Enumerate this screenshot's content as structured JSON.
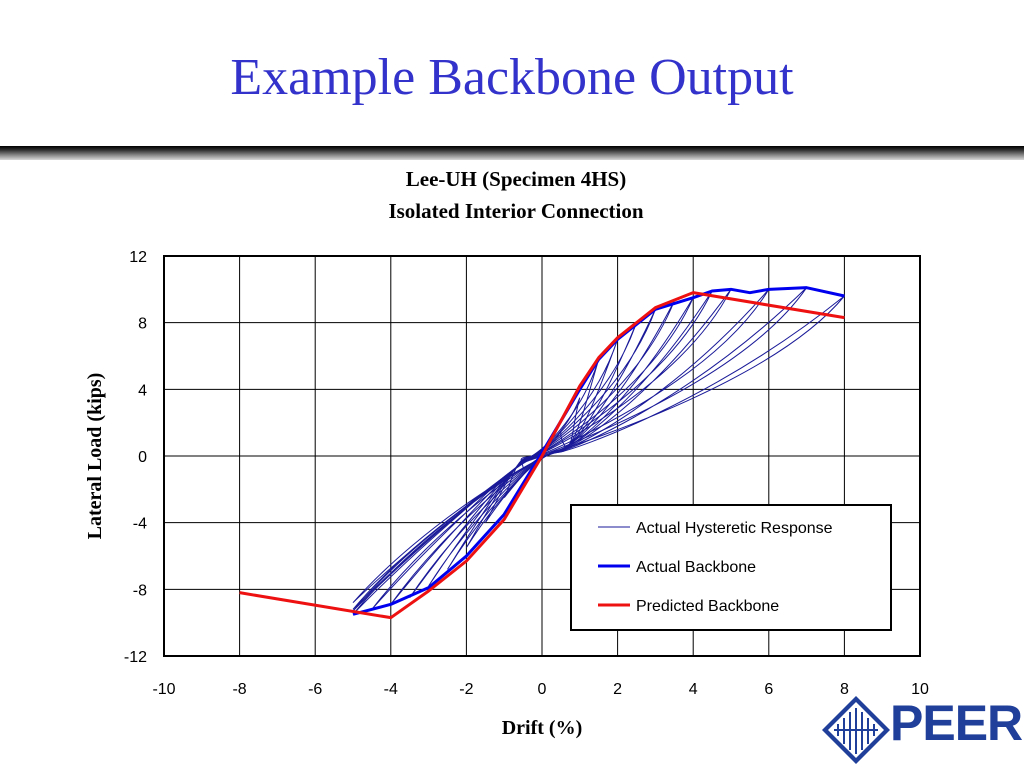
{
  "slide": {
    "title": "Example Backbone Output"
  },
  "logo": {
    "text": "PEER"
  },
  "chart_data": {
    "type": "line",
    "title": "Lee-UH (Specimen 4HS)",
    "subtitle": "Isolated Interior Connection",
    "xlabel": "Drift (%)",
    "ylabel": "Lateral Load (kips)",
    "xlim": [
      -10,
      10
    ],
    "ylim": [
      -12,
      12
    ],
    "xticks": [
      -10,
      -8,
      -6,
      -4,
      -2,
      0,
      2,
      4,
      6,
      8,
      10
    ],
    "yticks": [
      -12,
      -8,
      -4,
      0,
      4,
      8,
      12
    ],
    "grid": true,
    "legend": {
      "placement": "bottom-right",
      "entries": [
        "Actual Hysteretic Response",
        "Actual Backbone",
        "Predicted Backbone"
      ]
    },
    "colors": {
      "hysteretic": "#1a1a99",
      "actual_backbone": "#0000ee",
      "predicted_backbone": "#ee1111"
    },
    "series": [
      {
        "name": "Actual Hysteretic Response",
        "loops": [
          {
            "peak": [
              0.5,
              1.5
            ],
            "valley": [
              -0.5,
              -0.8
            ],
            "residual_pos": 0.35,
            "residual_neg": -0.3
          },
          {
            "peak": [
              1.0,
              3.5
            ],
            "valley": [
              -1.0,
              -2.5
            ],
            "residual_pos": 0.4,
            "residual_neg": -0.5
          },
          {
            "peak": [
              1.5,
              5.8
            ],
            "valley": [
              -1.5,
              -4.0
            ],
            "residual_pos": 0.45,
            "residual_neg": -0.6
          },
          {
            "peak": [
              2.0,
              7.0
            ],
            "valley": [
              -2.0,
              -5.5
            ],
            "residual_pos": 0.5,
            "residual_neg": -0.7
          },
          {
            "peak": [
              2.5,
              8.0
            ],
            "valley": [
              -2.5,
              -6.8
            ],
            "residual_pos": 0.5,
            "residual_neg": -0.8
          },
          {
            "peak": [
              3.0,
              8.8
            ],
            "valley": [
              -3.0,
              -7.8
            ],
            "residual_pos": 0.55,
            "residual_neg": -0.9
          },
          {
            "peak": [
              3.5,
              9.3
            ],
            "valley": [
              -3.5,
              -8.5
            ],
            "residual_pos": 0.55,
            "residual_neg": -1.0
          },
          {
            "peak": [
              4.0,
              9.5
            ],
            "valley": [
              -4.0,
              -8.9
            ],
            "residual_pos": 0.5,
            "residual_neg": -1.1
          },
          {
            "peak": [
              4.5,
              9.9
            ],
            "valley": [
              -4.5,
              -9.2
            ],
            "residual_pos": 0.5,
            "residual_neg": -1.2
          },
          {
            "peak": [
              5.0,
              10.0
            ],
            "valley": [
              -5.0,
              -9.5
            ],
            "residual_pos": 0.45,
            "residual_neg": -1.3
          },
          {
            "peak": [
              6.0,
              10.0
            ],
            "valley": [
              -5.0,
              -9.3
            ],
            "residual_pos": 0.45,
            "residual_neg": -1.4
          },
          {
            "peak": [
              7.0,
              10.1
            ],
            "valley": [
              -5.0,
              -9.2
            ],
            "residual_pos": 0.4,
            "residual_neg": -1.5
          },
          {
            "peak": [
              8.0,
              9.6
            ],
            "valley": [
              -5.0,
              -8.8
            ],
            "residual_pos": 0.35,
            "residual_neg": -1.6
          }
        ]
      },
      {
        "name": "Actual Backbone",
        "points": [
          [
            -5.0,
            -9.5
          ],
          [
            -4.0,
            -8.9
          ],
          [
            -3.0,
            -7.9
          ],
          [
            -2.0,
            -6.0
          ],
          [
            -1.0,
            -3.5
          ],
          [
            0.0,
            0.2
          ],
          [
            1.0,
            4.0
          ],
          [
            1.5,
            5.8
          ],
          [
            2.0,
            7.0
          ],
          [
            3.0,
            8.8
          ],
          [
            4.0,
            9.5
          ],
          [
            4.5,
            9.9
          ],
          [
            5.0,
            10.0
          ],
          [
            5.5,
            9.8
          ],
          [
            6.0,
            10.0
          ],
          [
            7.0,
            10.1
          ],
          [
            8.0,
            9.6
          ]
        ]
      },
      {
        "name": "Predicted Backbone",
        "points": [
          [
            -8.0,
            -8.2
          ],
          [
            -4.0,
            -9.7
          ],
          [
            -3.0,
            -8.1
          ],
          [
            -2.0,
            -6.3
          ],
          [
            -1.0,
            -3.8
          ],
          [
            0.0,
            0.0
          ],
          [
            1.0,
            4.2
          ],
          [
            1.5,
            5.9
          ],
          [
            2.0,
            7.1
          ],
          [
            3.0,
            8.9
          ],
          [
            4.0,
            9.8
          ],
          [
            8.0,
            8.3
          ]
        ]
      }
    ]
  }
}
